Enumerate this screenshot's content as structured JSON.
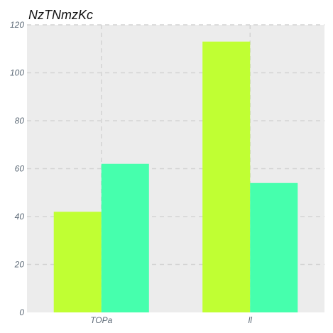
{
  "chart_data": {
    "type": "bar",
    "title": "NzTNmzKc",
    "xlabel": "",
    "ylabel": "",
    "categories": [
      "TOPa",
      "ll"
    ],
    "series": [
      {
        "values": [
          42,
          113
        ],
        "color": "#c0ff33"
      },
      {
        "values": [
          62,
          54
        ],
        "color": "#46ffad"
      }
    ],
    "ylim": [
      0,
      120
    ],
    "yticks": [
      0,
      20,
      40,
      60,
      80,
      100,
      120
    ],
    "grid": true,
    "background": "#ececec",
    "legend": "none"
  }
}
